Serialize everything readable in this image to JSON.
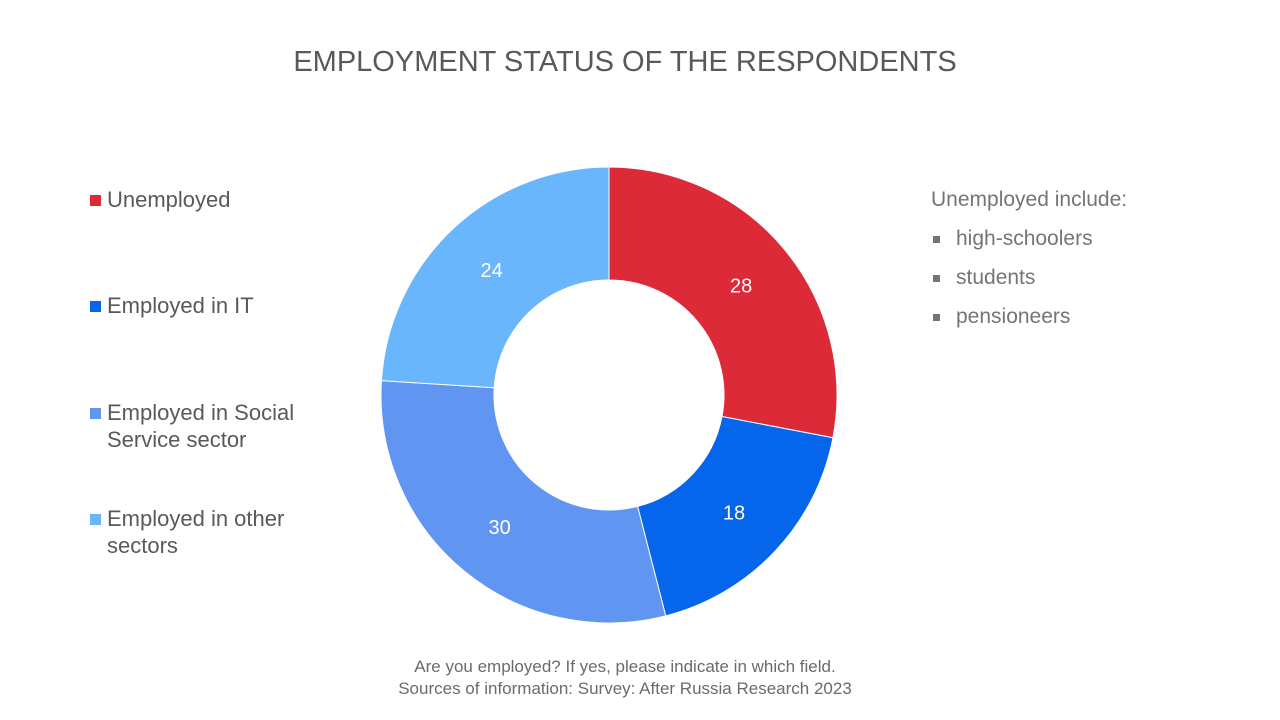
{
  "chart_data": {
    "type": "pie",
    "donut": true,
    "title": "EMPLOYMENT STATUS OF THE RESPONDENTS",
    "categories": [
      "Unemployed",
      "Employed in IT",
      "Employed in Social Service sector",
      "Employed in other sectors"
    ],
    "values": [
      28,
      18,
      30,
      24
    ],
    "colors": [
      "#DC2A38",
      "#0566EB",
      "#6096F2",
      "#69B6FD"
    ],
    "legend_position": "left"
  },
  "note": {
    "heading": "Unemployed include:",
    "items": [
      "high-schoolers",
      "students",
      "pensioneers"
    ]
  },
  "footer": {
    "line1": "Are you employed? If yes, please indicate in which field.",
    "line2": "Sources of information: Survey: After Russia Research 2023"
  }
}
